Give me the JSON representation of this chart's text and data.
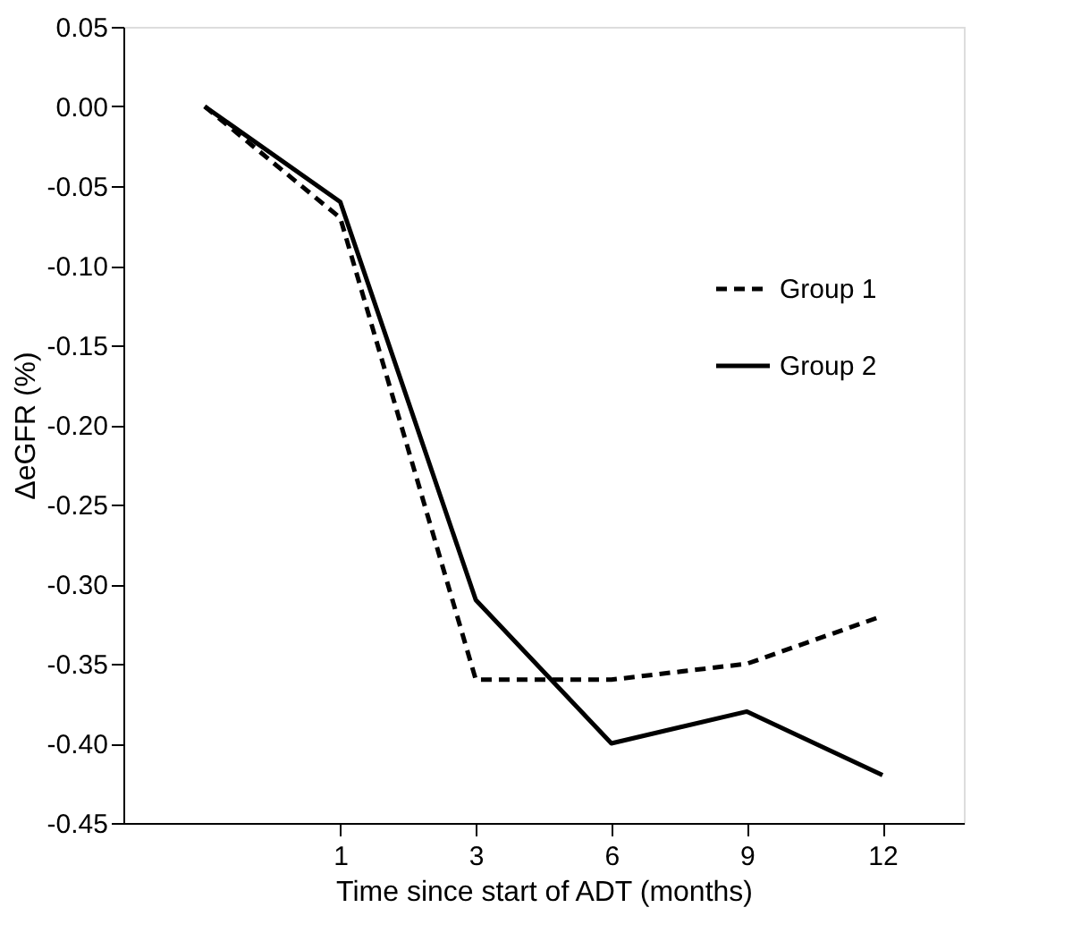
{
  "chart_data": {
    "type": "line",
    "xlabel": "Time since start of ADT (months)",
    "ylabel": "ΔeGFR (%)",
    "categories": [
      null,
      "1",
      "3",
      "6",
      "9",
      "12"
    ],
    "ylim": [
      -0.45,
      0.05
    ],
    "yticks": [
      {
        "value": 0.05,
        "label": "0.05"
      },
      {
        "value": 0,
        "label": "0.00"
      },
      {
        "value": -0.05,
        "label": "-0.05"
      },
      {
        "value": -0.1,
        "label": "-0.10"
      },
      {
        "value": -0.15,
        "label": "-0.15"
      },
      {
        "value": -0.2,
        "label": "-0.20"
      },
      {
        "value": -0.25,
        "label": "-0.25"
      },
      {
        "value": -0.3,
        "label": "-0.30"
      },
      {
        "value": -0.35,
        "label": "-0.35"
      },
      {
        "value": -0.4,
        "label": "-0.40"
      },
      {
        "value": -0.45,
        "label": "-0.45"
      }
    ],
    "series": [
      {
        "name": "Group 1",
        "color": "#000000",
        "line_style": "dashed",
        "values": [
          0,
          -0.07,
          -0.36,
          -0.36,
          -0.35,
          -0.32
        ]
      },
      {
        "name": "Group 2",
        "color": "#000000",
        "line_style": "solid",
        "values": [
          0,
          -0.06,
          -0.31,
          -0.4,
          -0.38,
          -0.42
        ]
      }
    ],
    "legend": "right",
    "grid": false,
    "marker": "none"
  }
}
